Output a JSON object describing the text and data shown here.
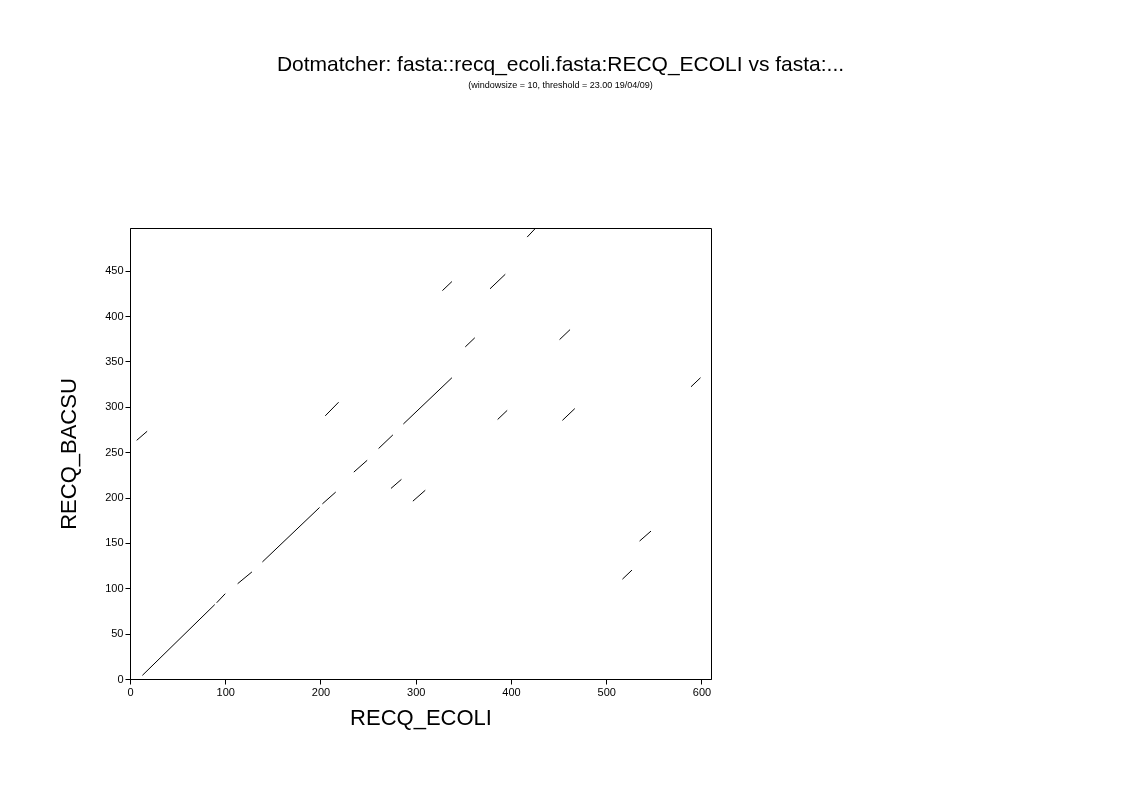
{
  "chart_data": {
    "type": "line",
    "title": "Dotmatcher: fasta::recq_ecoli.fasta:RECQ_ECOLI vs fasta:...",
    "subtitle": "(windowsize = 10, threshold = 23.00  19/04/09)",
    "xlabel": "RECQ_ECOLI",
    "ylabel": "RECQ_BACSU",
    "xlim": [
      0,
      610
    ],
    "ylim": [
      0,
      497
    ],
    "xticks": [
      0,
      100,
      200,
      300,
      400,
      500,
      600
    ],
    "yticks": [
      0,
      50,
      100,
      150,
      200,
      250,
      300,
      350,
      400,
      450
    ],
    "grid": false,
    "legend": false,
    "line_style": "solid",
    "series": [
      {
        "color": "#000000",
        "x": [
          13,
          89
        ],
        "values": [
          4,
          82
        ]
      },
      {
        "color": "#000000",
        "x": [
          91,
          100
        ],
        "values": [
          84,
          94
        ]
      },
      {
        "color": "#000000",
        "x": [
          113,
          128
        ],
        "values": [
          105,
          118
        ]
      },
      {
        "color": "#000000",
        "x": [
          139,
          199
        ],
        "values": [
          129,
          189
        ]
      },
      {
        "color": "#000000",
        "x": [
          202,
          216
        ],
        "values": [
          193,
          206
        ]
      },
      {
        "color": "#000000",
        "x": [
          235,
          249
        ],
        "values": [
          228,
          241
        ]
      },
      {
        "color": "#000000",
        "x": [
          261,
          276
        ],
        "values": [
          254,
          269
        ]
      },
      {
        "color": "#000000",
        "x": [
          274,
          285
        ],
        "values": [
          210,
          220
        ]
      },
      {
        "color": "#000000",
        "x": [
          297,
          310
        ],
        "values": [
          196,
          208
        ]
      },
      {
        "color": "#000000",
        "x": [
          7,
          18
        ],
        "values": [
          263,
          273
        ]
      },
      {
        "color": "#000000",
        "x": [
          205,
          219
        ],
        "values": [
          290,
          305
        ]
      },
      {
        "color": "#000000",
        "x": [
          287,
          338
        ],
        "values": [
          281,
          332
        ]
      },
      {
        "color": "#000000",
        "x": [
          417,
          426
        ],
        "values": [
          487,
          497
        ]
      },
      {
        "color": "#000000",
        "x": [
          328,
          338
        ],
        "values": [
          428,
          438
        ]
      },
      {
        "color": "#000000",
        "x": [
          378,
          394
        ],
        "values": [
          430,
          446
        ]
      },
      {
        "color": "#000000",
        "x": [
          352,
          362
        ],
        "values": [
          366,
          376
        ]
      },
      {
        "color": "#000000",
        "x": [
          451,
          462
        ],
        "values": [
          374,
          385
        ]
      },
      {
        "color": "#000000",
        "x": [
          589,
          599
        ],
        "values": [
          322,
          332
        ]
      },
      {
        "color": "#000000",
        "x": [
          386,
          396
        ],
        "values": [
          286,
          296
        ]
      },
      {
        "color": "#000000",
        "x": [
          454,
          467
        ],
        "values": [
          285,
          298
        ]
      },
      {
        "color": "#000000",
        "x": [
          535,
          547
        ],
        "values": [
          152,
          163
        ]
      },
      {
        "color": "#000000",
        "x": [
          517,
          527
        ],
        "values": [
          110,
          120
        ]
      }
    ]
  }
}
